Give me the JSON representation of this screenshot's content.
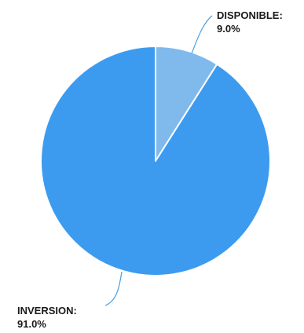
{
  "colors": {
    "background": "#ffffff",
    "label_text": "#1a1a1a",
    "leader_line": "#4a9fdc"
  },
  "chart_data": {
    "type": "pie",
    "title": "",
    "start_angle_deg": 0,
    "direction": "clockwise",
    "legend": "none",
    "slices": [
      {
        "label": "DISPONIBLE:",
        "value": 9.0,
        "value_label": "9.0%",
        "color": "#80b9ec"
      },
      {
        "label": "INVERSION:",
        "value": 91.0,
        "value_label": "91.0%",
        "color": "#3c9bef"
      }
    ]
  }
}
